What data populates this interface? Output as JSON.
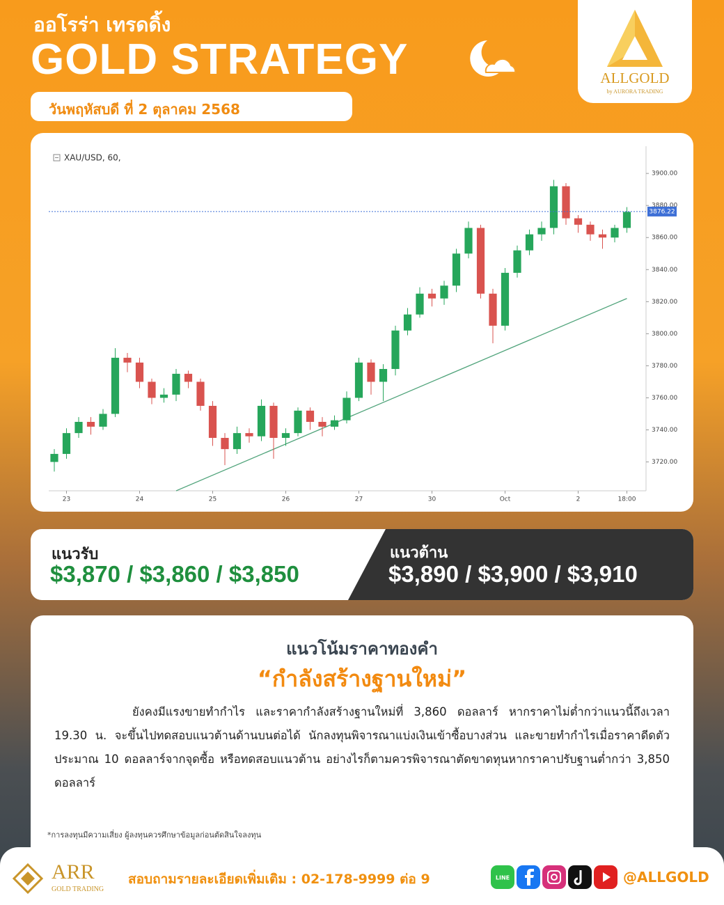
{
  "header": {
    "brand_th": "ออโรร่า เทรดดิ้ง",
    "title": "GOLD STRATEGY",
    "date": "วันพฤหัสบดี ที่ 2 ตุลาคม 2568"
  },
  "logo": {
    "name": "ALLGOLD",
    "tagline": "by AURORA TRADING"
  },
  "chart_data": {
    "type": "candlestick",
    "title": "XAU/USD, 60,",
    "categories": [
      null,
      "23",
      null,
      null,
      null,
      null,
      null,
      "24",
      null,
      null,
      null,
      null,
      null,
      "25",
      null,
      null,
      null,
      null,
      null,
      "26",
      null,
      null,
      null,
      null,
      null,
      "27",
      null,
      null,
      null,
      null,
      null,
      "30",
      null,
      null,
      null,
      null,
      null,
      "Oct",
      null,
      null,
      null,
      null,
      null,
      "2",
      null,
      null,
      null,
      "18:00"
    ],
    "open": [
      3720,
      3725,
      3738,
      3745,
      3742,
      3750,
      3785,
      3782,
      3770,
      3760,
      3762,
      3775,
      3770,
      3755,
      3735,
      3728,
      3738,
      3736,
      3755,
      3735,
      3738,
      3752,
      3745,
      3742,
      3746,
      3760,
      3782,
      3770,
      3778,
      3802,
      3812,
      3825,
      3822,
      3830,
      3850,
      3866,
      3825,
      3805,
      3838,
      3852,
      3862,
      3866,
      3892,
      3872,
      3868,
      3862,
      3860,
      3866
    ],
    "high": [
      3728,
      3741,
      3748,
      3748,
      3753,
      3791,
      3788,
      3785,
      3772,
      3766,
      3778,
      3777,
      3772,
      3758,
      3738,
      3742,
      3741,
      3759,
      3757,
      3741,
      3754,
      3754,
      3748,
      3749,
      3764,
      3785,
      3784,
      3781,
      3805,
      3816,
      3829,
      3828,
      3833,
      3853,
      3870,
      3868,
      3828,
      3841,
      3855,
      3865,
      3870,
      3896,
      3894,
      3874,
      3870,
      3865,
      3868,
      3879
    ],
    "low": [
      3714,
      3722,
      3735,
      3737,
      3740,
      3748,
      3776,
      3766,
      3756,
      3757,
      3758,
      3766,
      3752,
      3730,
      3718,
      3725,
      3732,
      3733,
      3722,
      3730,
      3736,
      3740,
      3736,
      3740,
      3744,
      3758,
      3762,
      3758,
      3774,
      3799,
      3810,
      3817,
      3818,
      3826,
      3847,
      3822,
      3794,
      3802,
      3835,
      3849,
      3858,
      3862,
      3868,
      3863,
      3858,
      3853,
      3857,
      3863
    ],
    "close": [
      3725,
      3738,
      3745,
      3742,
      3750,
      3785,
      3782,
      3770,
      3760,
      3762,
      3775,
      3770,
      3755,
      3735,
      3728,
      3738,
      3736,
      3755,
      3735,
      3738,
      3752,
      3745,
      3742,
      3746,
      3760,
      3782,
      3770,
      3778,
      3802,
      3812,
      3825,
      3822,
      3830,
      3850,
      3866,
      3825,
      3805,
      3838,
      3852,
      3862,
      3866,
      3892,
      3872,
      3868,
      3862,
      3860,
      3866,
      3876
    ],
    "up_color": "#26a65b",
    "down_color": "#d9534f",
    "ylim": [
      3702,
      3917
    ],
    "yticks": [
      {
        "value": 3720,
        "label": "3720.00"
      },
      {
        "value": 3740,
        "label": "3740.00"
      },
      {
        "value": 3760,
        "label": "3760.00"
      },
      {
        "value": 3780,
        "label": "3780.00"
      },
      {
        "value": 3800,
        "label": "3800.00"
      },
      {
        "value": 3820,
        "label": "3820.00"
      },
      {
        "value": 3840,
        "label": "3840.00"
      },
      {
        "value": 3860,
        "label": "3860.00"
      },
      {
        "value": 3880,
        "label": "3880.00"
      },
      {
        "value": 3900,
        "label": "3900.00"
      }
    ],
    "last_price": 3876.22,
    "last_price_color": "#3d6fd6",
    "trendline": {
      "x": [
        10,
        47
      ],
      "values": [
        3702,
        3822
      ],
      "color": "#4fa37a"
    }
  },
  "levels": {
    "support": {
      "label": "แนวรับ",
      "values": "$3,870 / $3,860 / $3,850"
    },
    "resistance": {
      "label": "แนวต้าน",
      "values": "$3,890 / $3,900 / $3,910"
    }
  },
  "analysis": {
    "heading": "แนวโน้มราคาทองคำ",
    "headline": "“กำลังสร้างฐานใหม่”",
    "paragraph": "ยังคงมีแรงขายทำกำไร และราคากำลังสร้างฐานใหม่ที่ 3,860 ดอลลาร์ หากราคาไม่ต่ำกว่าแนวนี้ถึงเวลา 19.30 น. จะขึ้นไปทดสอบแนวต้านด้านบนต่อได้ นักลงทุนพิจารณาแบ่งเงินเข้าซื้อบางส่วน และขายทำกำไรเมื่อราคาดีดตัวประมาณ 10 ดอลลาร์จากจุดซื้อ หรือทดสอบแนวต้าน อย่างไรก็ตามควรพิจารณาตัดขาดทุนหากราคาปรับฐานต่ำกว่า 3,850 ดอลลาร์"
  },
  "disclaimer": "*การลงทุนมีความเสี่ยง ผู้ลงทุนควรศึกษาข้อมูลก่อนตัดสินใจลงทุน",
  "footer": {
    "brand": "ARR",
    "brand_sub": "GOLD TRADING",
    "contact": "สอบถามรายละเอียดเพิ่มเติม : 02-178-9999 ต่อ 9",
    "line_icon": "LINE",
    "handle": "@ALLGOLD"
  }
}
